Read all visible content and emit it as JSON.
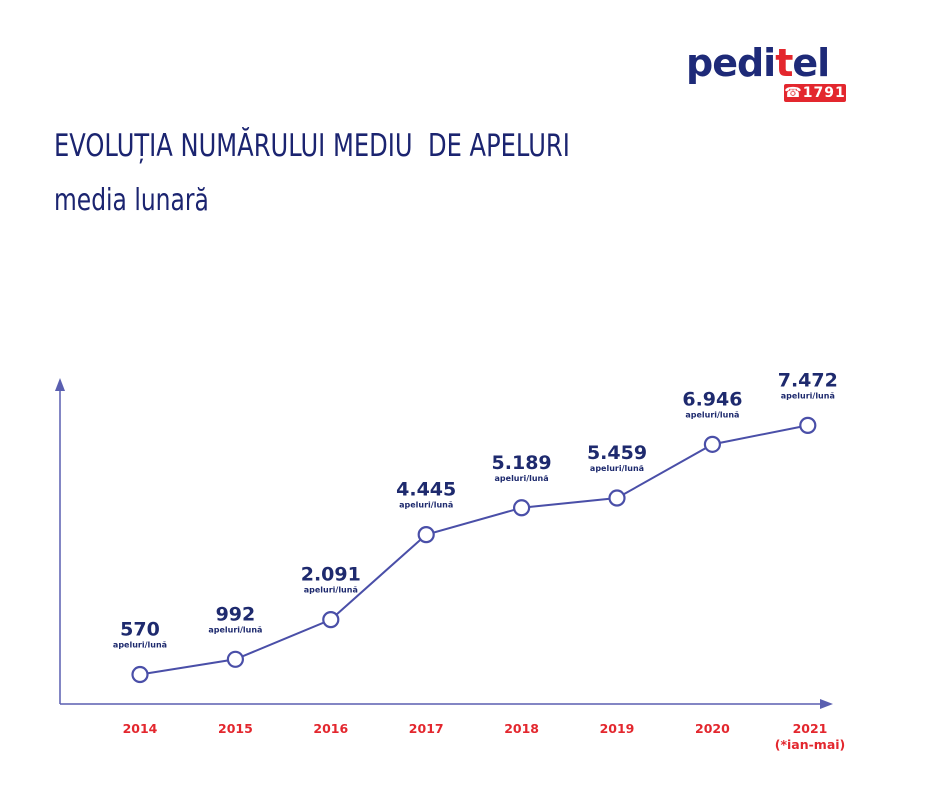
{
  "brand": {
    "name_main": "pedi",
    "name_accent": "t",
    "name_tail": "el",
    "badge": "☎1791",
    "colors": {
      "navy": "#1e2a78",
      "red": "#e3272e"
    }
  },
  "heading": {
    "title": "EVOLUȚIA NUMĂRULUI MEDIU  DE APELURI",
    "subtitle": "media lunară"
  },
  "chart_data": {
    "type": "line",
    "categories": [
      "2014",
      "2015",
      "2016",
      "2017",
      "2018",
      "2019",
      "2020",
      "2021"
    ],
    "category_notes": [
      "",
      "",
      "",
      "",
      "",
      "",
      "",
      "(*ian-mai)"
    ],
    "values": [
      570,
      992,
      2091,
      4445,
      5189,
      5459,
      6946,
      7472
    ],
    "value_labels": [
      "570",
      "992",
      "2.091",
      "4.445",
      "5.189",
      "5.459",
      "6.946",
      "7.472"
    ],
    "unit_label": "apeluri/lună",
    "grid": false,
    "legend": "none",
    "colors": {
      "line": "#4a4fa8",
      "marker_fill": "#ffffff",
      "values": "#1e2a6e",
      "ticks": "#e3272e",
      "axes": "#5a5fb0"
    }
  }
}
